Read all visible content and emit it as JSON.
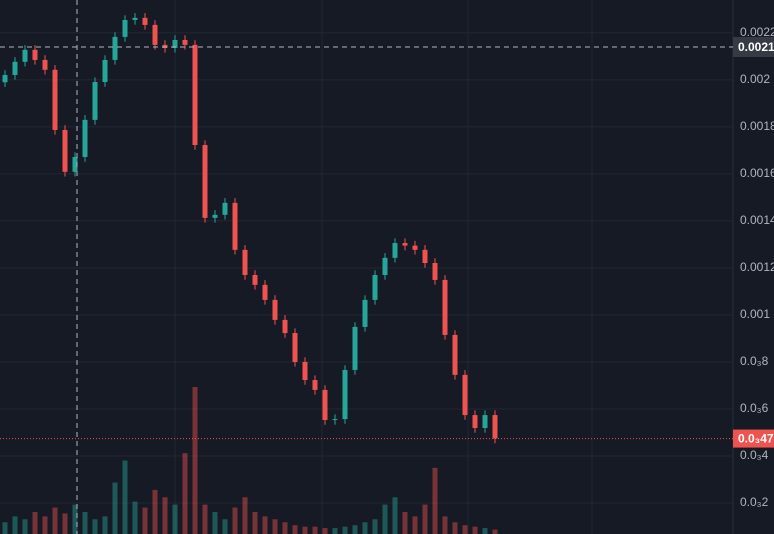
{
  "chart_data": {
    "type": "candlestick",
    "open": [
      0.00199,
      0.002021,
      0.002077,
      0.002128,
      0.002085,
      0.002043,
      0.001787,
      0.001609,
      0.001672,
      0.00183,
      0.001991,
      0.002085,
      0.002183,
      0.002255,
      0.002264,
      0.002234,
      0.002149,
      0.002136,
      0.00217,
      0.002149,
      0.001723,
      0.001413,
      0.001426,
      0.001477,
      0.001277,
      0.00117,
      0.001128,
      0.001064,
      0.000979,
      0.000923,
      0.0008,
      0.000723,
      0.000681,
      0.000553,
      0.000557,
      0.000766,
      0.000949,
      0.001064,
      0.00117,
      0.001243,
      0.001306,
      0.001295,
      0.001277,
      0.001221,
      0.001149,
      0.000915,
      0.000745,
      0.000574,
      0.000519,
      0.000574
    ],
    "high": [
      0.002041,
      0.002097,
      0.002148,
      0.002148,
      0.002105,
      0.002063,
      0.001807,
      0.001692,
      0.00185,
      0.002011,
      0.002105,
      0.002203,
      0.002275,
      0.002284,
      0.002284,
      0.002254,
      0.002169,
      0.00219,
      0.00219,
      0.002169,
      0.001743,
      0.001446,
      0.001497,
      0.001497,
      0.001297,
      0.00119,
      0.001148,
      0.001084,
      0.000999,
      0.000943,
      0.00082,
      0.000743,
      0.000701,
      0.000577,
      0.000786,
      0.000969,
      0.001084,
      0.00119,
      0.001263,
      0.001326,
      0.001326,
      0.001315,
      0.001297,
      0.001241,
      0.001169,
      0.000935,
      0.000765,
      0.000594,
      0.000594,
      0.000594
    ],
    "low": [
      0.00197,
      0.002001,
      0.002057,
      0.002065,
      0.002023,
      0.001767,
      0.001589,
      0.001589,
      0.001652,
      0.00181,
      0.001971,
      0.002065,
      0.002163,
      0.002235,
      0.002214,
      0.002129,
      0.002116,
      0.002116,
      0.002129,
      0.001703,
      0.001393,
      0.001393,
      0.001406,
      0.001257,
      0.00115,
      0.001108,
      0.001044,
      0.000959,
      0.000903,
      0.00078,
      0.000703,
      0.000661,
      0.000533,
      0.000533,
      0.000537,
      0.000746,
      0.000929,
      0.001044,
      0.00115,
      0.001223,
      0.001275,
      0.001257,
      0.001201,
      0.001129,
      0.000895,
      0.000725,
      0.000554,
      0.000499,
      0.000499,
      0.000454
    ],
    "close": [
      0.002021,
      0.002077,
      0.002128,
      0.002085,
      0.002043,
      0.001787,
      0.001609,
      0.001672,
      0.00183,
      0.001991,
      0.002085,
      0.002183,
      0.002255,
      0.002264,
      0.002234,
      0.002149,
      0.002136,
      0.00217,
      0.002149,
      0.001723,
      0.001413,
      0.001426,
      0.001477,
      0.001277,
      0.00117,
      0.001128,
      0.001064,
      0.000979,
      0.000923,
      0.0008,
      0.000723,
      0.000681,
      0.000553,
      0.000557,
      0.000766,
      0.000949,
      0.001064,
      0.00117,
      0.001243,
      0.001306,
      0.001295,
      0.001277,
      0.001221,
      0.001149,
      0.000915,
      0.000745,
      0.000574,
      0.000519,
      0.000574,
      0.000474
    ],
    "volume": [
      8,
      12,
      10,
      15,
      12,
      18,
      14,
      20,
      15,
      10,
      12,
      35,
      50,
      22,
      18,
      30,
      25,
      20,
      55,
      100,
      20,
      15,
      10,
      18,
      25,
      15,
      12,
      10,
      8,
      6,
      5,
      5,
      4,
      4,
      5,
      6,
      8,
      10,
      20,
      25,
      15,
      12,
      20,
      45,
      12,
      8,
      6,
      5,
      4,
      3
    ],
    "up_color": "#26a69a",
    "down_color": "#ef5350",
    "ylim": [
      6.8e-05,
      0.00234
    ],
    "yticks": [
      0.0022,
      0.002,
      0.0018,
      0.0016,
      0.0014,
      0.0012,
      0.001,
      {
        "value": 0.0008,
        "label": "0.0₃8"
      },
      {
        "value": 0.0006,
        "label": "0.0₃6"
      },
      {
        "value": 0.0004,
        "label": "0.0₃4"
      },
      {
        "value": 0.0002,
        "label": "0.0₃2"
      }
    ],
    "crosshair": {
      "value": 0.00214,
      "label": "0.0021"
    },
    "last_price": {
      "value": 0.000474,
      "label": "0.0₃47"
    },
    "grid": true
  }
}
